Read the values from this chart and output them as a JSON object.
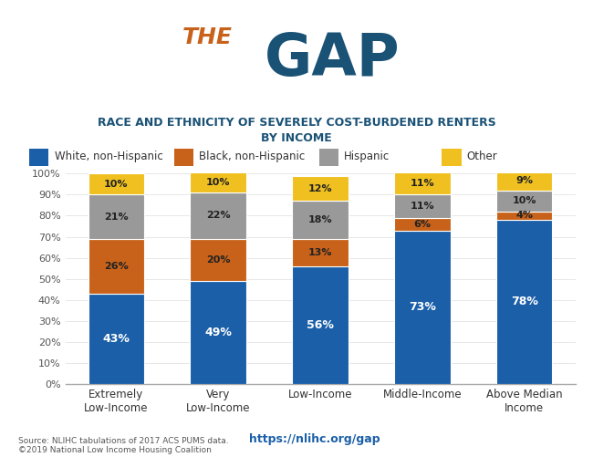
{
  "categories": [
    "Extremely\nLow-Income",
    "Very\nLow-Income",
    "Low-Income",
    "Middle-Income",
    "Above Median\nIncome"
  ],
  "series": {
    "White, non-Hispanic": [
      43,
      49,
      56,
      73,
      78
    ],
    "Black, non-Hispanic": [
      26,
      20,
      13,
      6,
      4
    ],
    "Hispanic": [
      21,
      22,
      18,
      11,
      10
    ],
    "Other": [
      10,
      10,
      12,
      11,
      9
    ]
  },
  "colors": {
    "White, non-Hispanic": "#1a5fa8",
    "Black, non-Hispanic": "#c8621a",
    "Hispanic": "#999999",
    "Other": "#f0c020"
  },
  "title_the_color": "#c8621a",
  "title_gap_color": "#1a5276",
  "subtitle": "RACE AND ETHNICITY OF SEVERELY COST-BURDENED RENTERS\nBY INCOME",
  "subtitle_color": "#1a5276",
  "source_text": "Source: NLIHC tabulations of 2017 ACS PUMS data.\n©2019 National Low Income Housing Coalition",
  "url_text": "https://nlihc.org/gap",
  "background_color": "#ffffff",
  "bar_label_color_white": "#ffffff",
  "bar_label_color_dark": "#222222",
  "ylim": [
    0,
    100
  ],
  "yticks": [
    0,
    10,
    20,
    30,
    40,
    50,
    60,
    70,
    80,
    90,
    100
  ],
  "ytick_labels": [
    "0%",
    "10%",
    "20%",
    "30%",
    "40%",
    "50%",
    "60%",
    "70%",
    "80%",
    "90%",
    "100%"
  ]
}
